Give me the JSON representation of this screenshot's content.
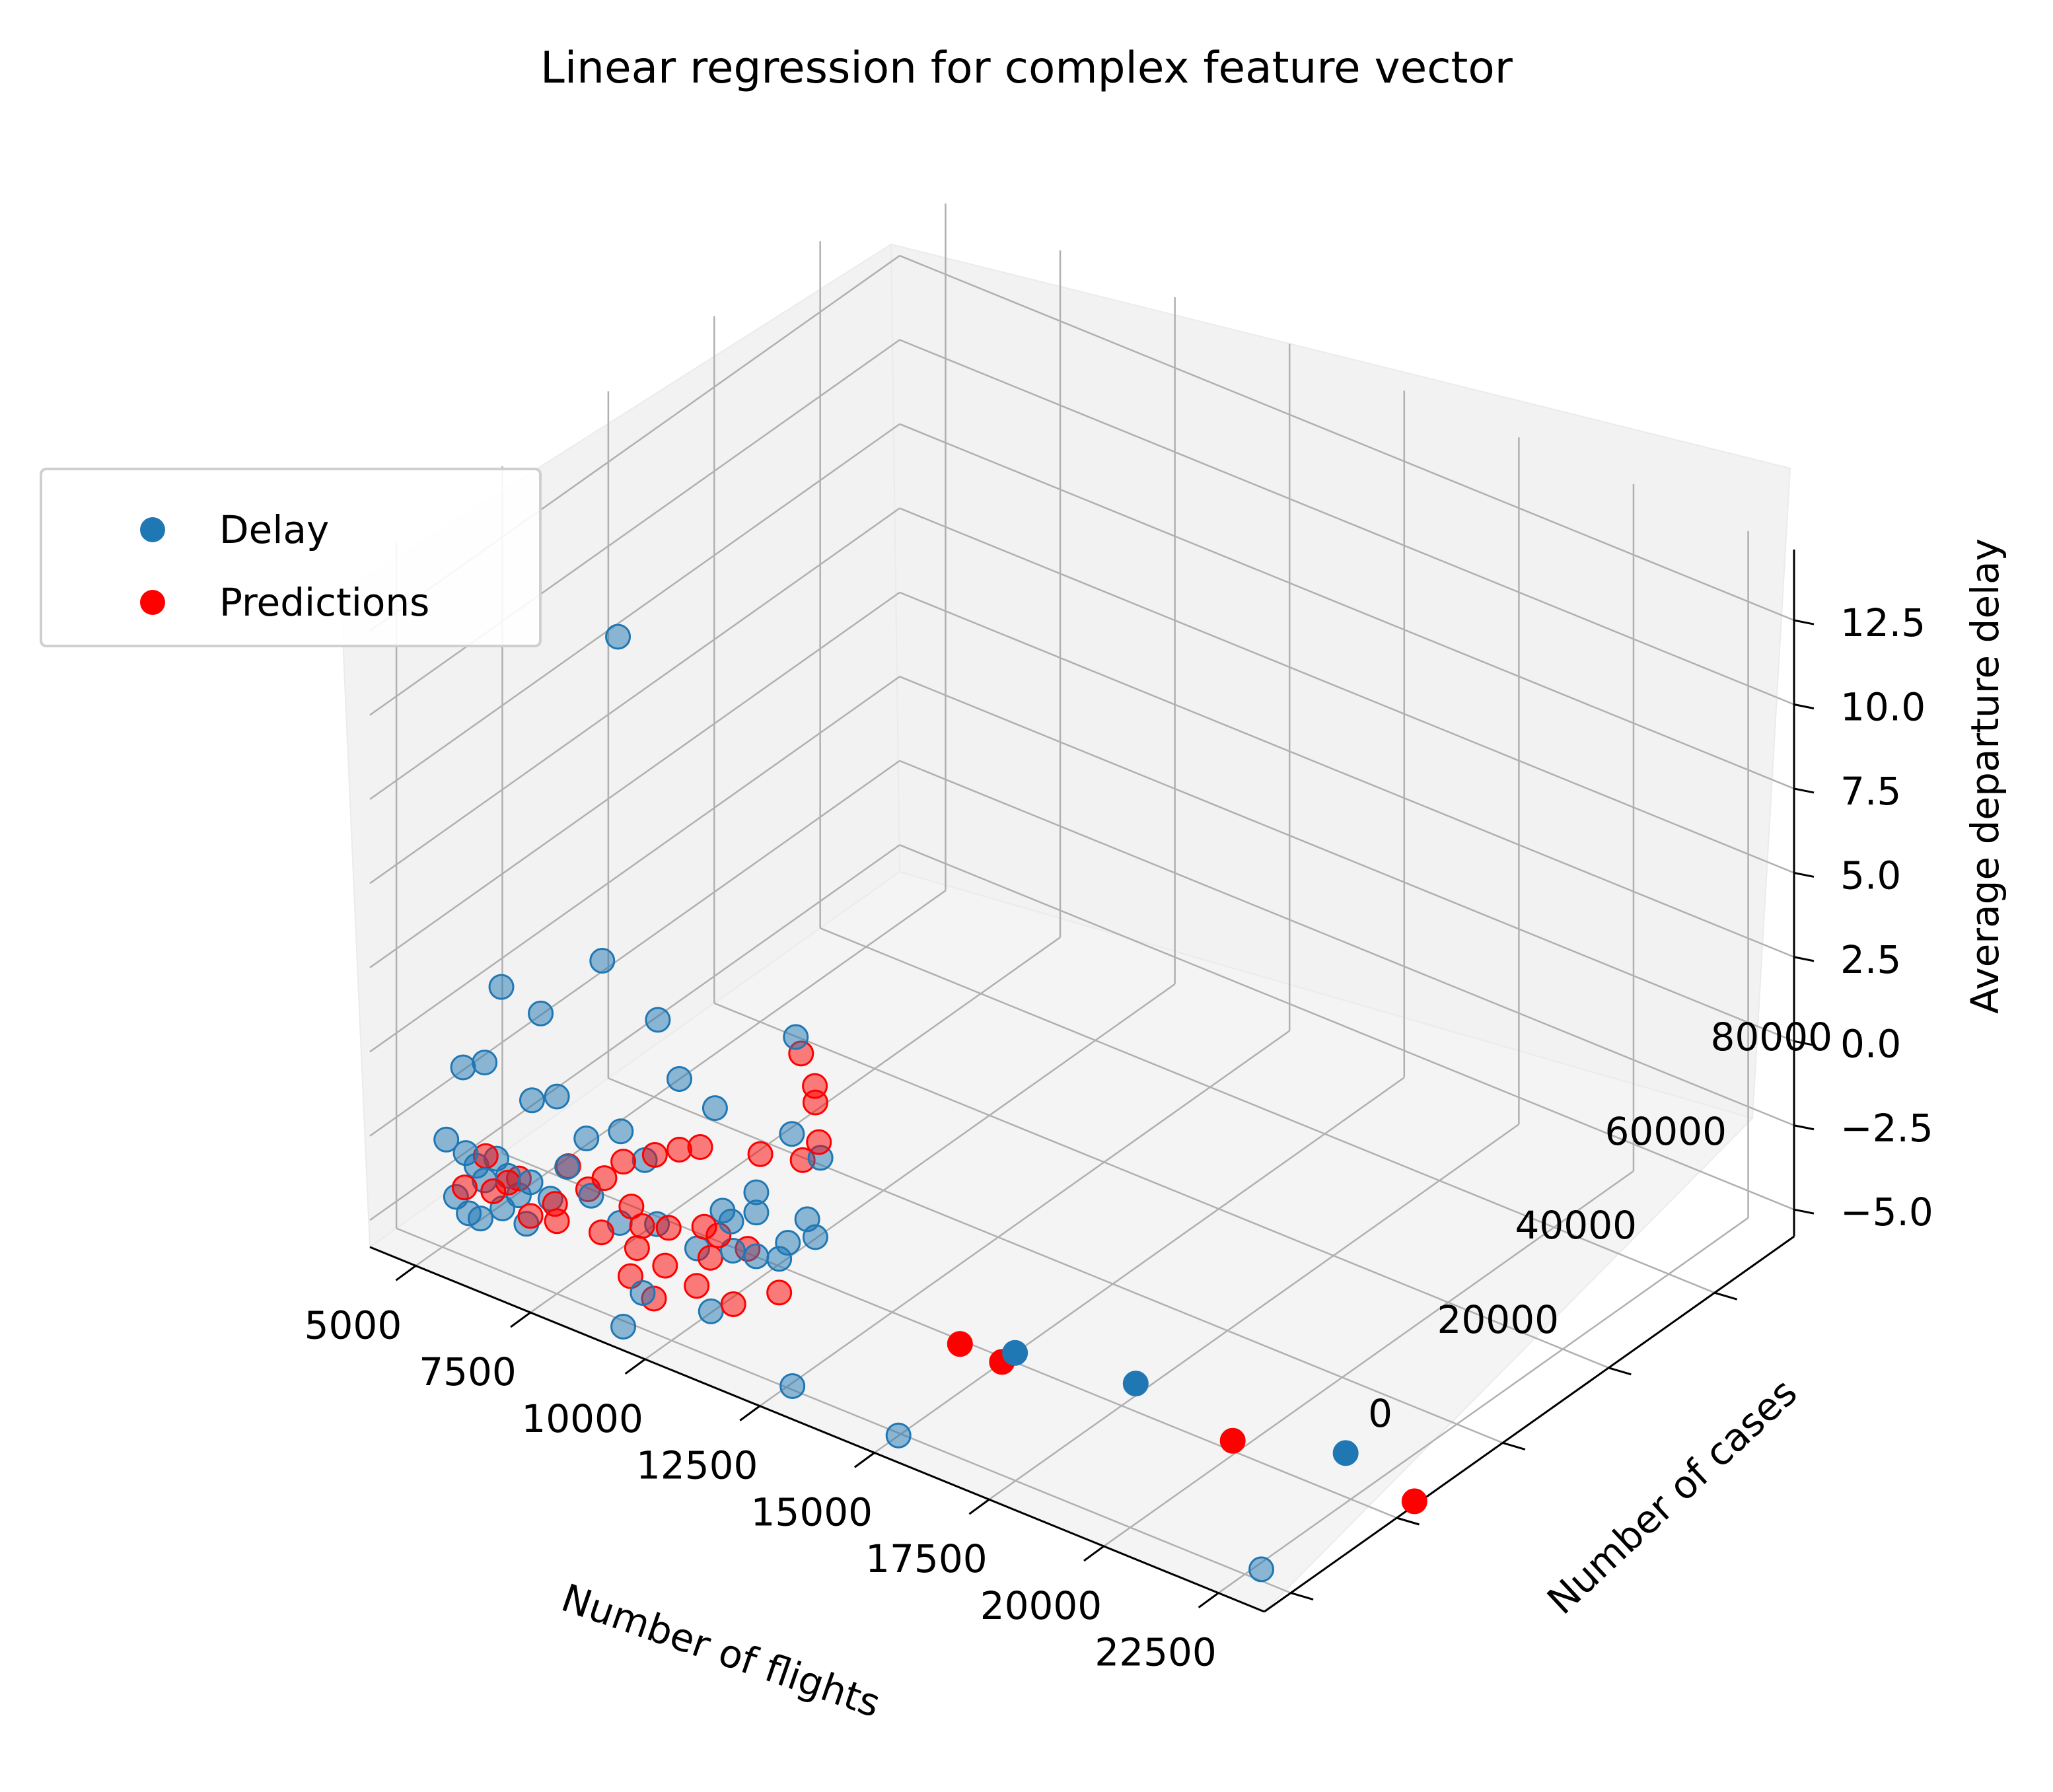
{
  "chart_data": {
    "type": "scatter",
    "title": "Linear regression for complex feature vector",
    "xlabel": "Number of flights",
    "ylabel": "Number of cases",
    "zlabel": "Average departure delay",
    "x_ticks": [
      "5000",
      "7500",
      "10000",
      "12500",
      "15000",
      "17500",
      "20000",
      "22500"
    ],
    "y_ticks": [
      "0",
      "20000",
      "40000",
      "60000",
      "80000"
    ],
    "z_ticks": [
      "−5.0",
      "−2.5",
      "0.0",
      "2.5",
      "5.0",
      "7.5",
      "10.0",
      "12.5"
    ],
    "grid": true,
    "legend_position": "upper-left",
    "series": [
      {
        "name": "Delay",
        "color": "#1f77b4",
        "points": [
          [
            8600,
            2000,
            14.1
          ],
          [
            12500,
            1800,
            4.4
          ],
          [
            8200,
            2500,
            4.2
          ],
          [
            9400,
            2600,
            3.1
          ],
          [
            9800,
            3200,
            1.5
          ],
          [
            10600,
            3000,
            1.1
          ],
          [
            6000,
            2500,
            2.2
          ],
          [
            6800,
            3000,
            1.8
          ],
          [
            12300,
            2800,
            1.3
          ],
          [
            12900,
            3000,
            0.9
          ],
          [
            5200,
            2200,
            -0.6
          ],
          [
            5600,
            2800,
            -0.3
          ],
          [
            6600,
            3100,
            -0.9
          ],
          [
            7200,
            2600,
            -0.4
          ],
          [
            7900,
            2100,
            -1.2
          ],
          [
            8500,
            3400,
            -0.8
          ],
          [
            9000,
            3600,
            -1.4
          ],
          [
            10800,
            2700,
            -1.8
          ],
          [
            11500,
            3000,
            -1.5
          ],
          [
            12200,
            2900,
            -2.0
          ],
          [
            12600,
            3100,
            -1.1
          ],
          [
            4800,
            2500,
            -3.0
          ],
          [
            5200,
            2700,
            -3.2
          ],
          [
            5400,
            3000,
            -3.5
          ],
          [
            5600,
            2800,
            -3.8
          ],
          [
            5800,
            3300,
            -3.1
          ],
          [
            6100,
            2900,
            -3.4
          ],
          [
            6300,
            3200,
            -3.9
          ],
          [
            6600,
            2800,
            -3.3
          ],
          [
            7000,
            3100,
            -3.6
          ],
          [
            5000,
            2600,
            -4.6
          ],
          [
            5300,
            2400,
            -4.9
          ],
          [
            5500,
            2900,
            -5.0
          ],
          [
            6000,
            2700,
            -4.4
          ],
          [
            6500,
            2900,
            -4.6
          ],
          [
            7400,
            2800,
            -2.4
          ],
          [
            7900,
            3000,
            -3.0
          ],
          [
            8500,
            3200,
            -3.5
          ],
          [
            9300,
            3300,
            -3.1
          ],
          [
            10200,
            3100,
            -3.3
          ],
          [
            11000,
            2900,
            -2.9
          ],
          [
            11500,
            3000,
            -2.8
          ],
          [
            12000,
            3000,
            -2.6
          ],
          [
            14600,
            3000,
            -6.4
          ],
          [
            12300,
            2900,
            -6.2
          ],
          [
            22500,
            3100,
            -6.0
          ],
          [
            14600,
            25000,
            -6.4
          ],
          [
            17000,
            27000,
            -6.2
          ],
          [
            21000,
            32000,
            -6.6
          ],
          [
            8600,
            3000,
            -6.5
          ],
          [
            9000,
            3200,
            -5.3
          ],
          [
            10500,
            3100,
            -5.0
          ],
          [
            11000,
            2600,
            -2.0
          ],
          [
            12800,
            2900,
            -1.5
          ],
          [
            11500,
            3000,
            -0.9
          ]
        ]
      },
      {
        "name": "Predictions",
        "color": "#ff0000",
        "points": [
          [
            12500,
            2800,
            3.8
          ],
          [
            12800,
            2800,
            3.0
          ],
          [
            12800,
            2900,
            2.5
          ],
          [
            12900,
            2700,
            1.4
          ],
          [
            12500,
            3100,
            0.6
          ],
          [
            11600,
            2900,
            0.3
          ],
          [
            10300,
            2800,
            -0.2
          ],
          [
            9800,
            3200,
            -0.6
          ],
          [
            9300,
            2900,
            -1.0
          ],
          [
            8600,
            3000,
            -1.6
          ],
          [
            7400,
            3000,
            -2.4
          ],
          [
            8200,
            2900,
            -2.3
          ],
          [
            8800,
            2800,
            -2.8
          ],
          [
            9600,
            2900,
            -3.0
          ],
          [
            10500,
            3000,
            -3.4
          ],
          [
            5200,
            2500,
            -4.2
          ],
          [
            5800,
            2700,
            -4.0
          ],
          [
            6100,
            2900,
            -3.6
          ],
          [
            6600,
            2800,
            -4.3
          ],
          [
            7200,
            2600,
            -4.1
          ],
          [
            5600,
            3000,
            -3.1
          ],
          [
            6300,
            3200,
            -3.4
          ],
          [
            7100,
            3100,
            -3.7
          ],
          [
            8100,
            3200,
            -4.0
          ],
          [
            8900,
            3000,
            -4.0
          ],
          [
            9500,
            3100,
            -4.2
          ],
          [
            10200,
            3000,
            -4.4
          ],
          [
            11000,
            3000,
            -4.5
          ],
          [
            12000,
            3000,
            -3.6
          ],
          [
            10400,
            2700,
            -2.5
          ],
          [
            8700,
            3500,
            -5.0
          ],
          [
            9200,
            3600,
            -5.4
          ],
          [
            13400,
            25000,
            -6.8
          ],
          [
            14200,
            26000,
            -7.0
          ],
          [
            19000,
            28000,
            -6.9
          ],
          [
            22500,
            32000,
            -7.2
          ],
          [
            9000,
            3100,
            -3.3
          ],
          [
            7800,
            3300,
            -2.9
          ],
          [
            10700,
            2800,
            -2.6
          ],
          [
            11300,
            3100,
            -2.7
          ]
        ]
      }
    ]
  }
}
